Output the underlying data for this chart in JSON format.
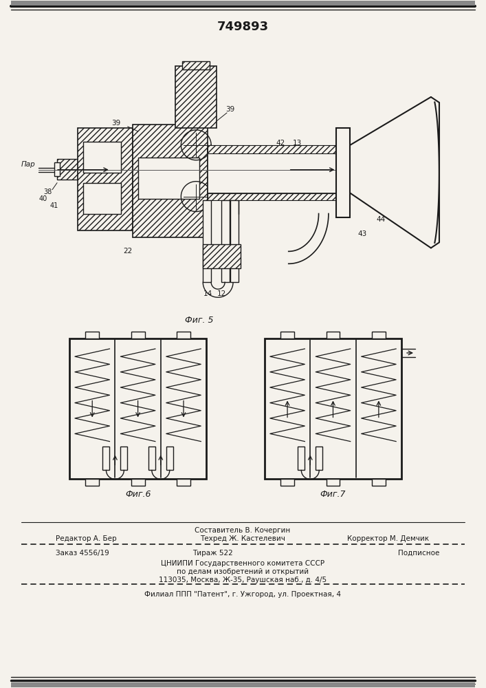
{
  "patent_number": "749893",
  "fig5_label": "Фиг. 5",
  "fig6_label": "Фиг.6",
  "fig7_label": "Фиг.7",
  "par_label": "Пар",
  "footer_line1_center": "Составитель В. Кочергин",
  "footer_line2_left": "Редактор А. Бер",
  "footer_line2_center": "Техред Ж. Кастелевич",
  "footer_line2_right": "Корректор М. Демчик",
  "footer_line3_left": "Заказ 4556/19",
  "footer_line3_center": "Тираж 522",
  "footer_line3_right": "Подписное",
  "footer_line4": "ЦНИИПИ Государственного комитета СССР",
  "footer_line5": "по делам изобретений и открытий",
  "footer_line6": "113035, Москва, Ж-35, Раушская наб., д. 4/5",
  "footer_line7": "Филиал ППП \"Патент\", г. Ужгород, ул. Проектная, 4",
  "bg_color": "#f5f2ec",
  "line_color": "#1a1a1a"
}
